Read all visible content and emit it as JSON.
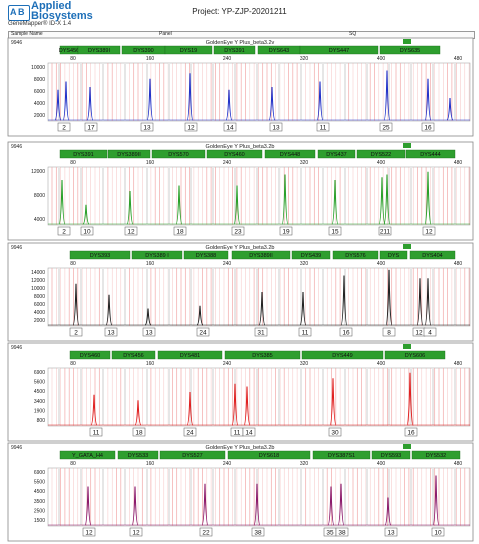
{
  "header": {
    "brand_line1": "Applied",
    "brand_line2": "Biosystems",
    "app_name": "GeneMapper® ID-X  1.4",
    "project": "Project:  YP-ZJP-20201211"
  },
  "columns": {
    "sample_name": "Sample Name",
    "panel": "Panel",
    "sq": "SQ"
  },
  "colors": {
    "blue": "#2232c8",
    "green": "#2aa02a",
    "black": "#222222",
    "red": "#e02020",
    "purple": "#8b1a6b",
    "marker_fill": "#2e9e2e",
    "bin_line": "#f2a8a8"
  },
  "panels": [
    {
      "sample": "9946",
      "panel_name": "GoldenEye Y Plus_beta3.2v",
      "dye": "blue",
      "markers": [
        "DYS456",
        "DYS389I",
        "DYS390",
        "DYS19",
        "DYS391",
        "DYS643",
        "DYS447",
        "DYS635"
      ],
      "y_ticks": [
        "10000",
        "8000",
        "6000",
        "4000",
        "2000"
      ],
      "alleles": [
        "2",
        "17",
        "13",
        "12",
        "14",
        "13",
        "11",
        "25",
        "16"
      ]
    },
    {
      "sample": "9946",
      "panel_name": "GoldenEye Y Plus_beta3.2b",
      "dye": "green",
      "markers": [
        "DYS391",
        "DYS389II",
        "DYS570",
        "DYS460",
        "DYS448",
        "DYS437",
        "DYS522",
        "DYS444"
      ],
      "y_ticks": [
        "12000",
        "8000",
        "4000"
      ],
      "alleles": [
        "2",
        "10",
        "12",
        "18",
        "23",
        "19",
        "15",
        "211",
        "12"
      ]
    },
    {
      "sample": "9946",
      "panel_name": "GoldenEye Y Plus_beta3.2b",
      "dye": "black",
      "markers": [
        "DYS393",
        "DYS389 I",
        "DYS388",
        "DYS389II",
        "DYS439",
        "DYS576",
        "DYS",
        "DYS404"
      ],
      "y_ticks": [
        "14000",
        "12000",
        "10000",
        "8000",
        "6000",
        "4000",
        "2000"
      ],
      "alleles": [
        "2",
        "13",
        "13",
        "24",
        "31",
        "11",
        "16",
        "8",
        "12",
        "4"
      ]
    },
    {
      "sample": "9946",
      "panel_name": "",
      "dye": "red",
      "markers": [
        "DYS460",
        "DYS456",
        "DYS481",
        "DYS385",
        "DYS449",
        "DYS606"
      ],
      "y_ticks": [
        "6900",
        "5600",
        "4500",
        "3400",
        "1900",
        "800"
      ],
      "alleles": [
        "11",
        "18",
        "24",
        "11",
        "14",
        "30",
        "16"
      ]
    },
    {
      "sample": "9946",
      "panel_name": "GoldenEye Y Plus_beta3.2b",
      "dye": "purple",
      "markers": [
        "Y_GATA_H4",
        "DYS533",
        "DYS527",
        "DYS618",
        "DYS387S1",
        "DYS593",
        "DYS532"
      ],
      "y_ticks": [
        "6900",
        "5500",
        "4500",
        "3500",
        "2500",
        "1500"
      ],
      "alleles": [
        "12",
        "12",
        "22",
        "38",
        "35",
        "38",
        "13",
        "10"
      ]
    }
  ],
  "x_ticks": [
    "80",
    "160",
    "240",
    "320",
    "400",
    "480"
  ]
}
